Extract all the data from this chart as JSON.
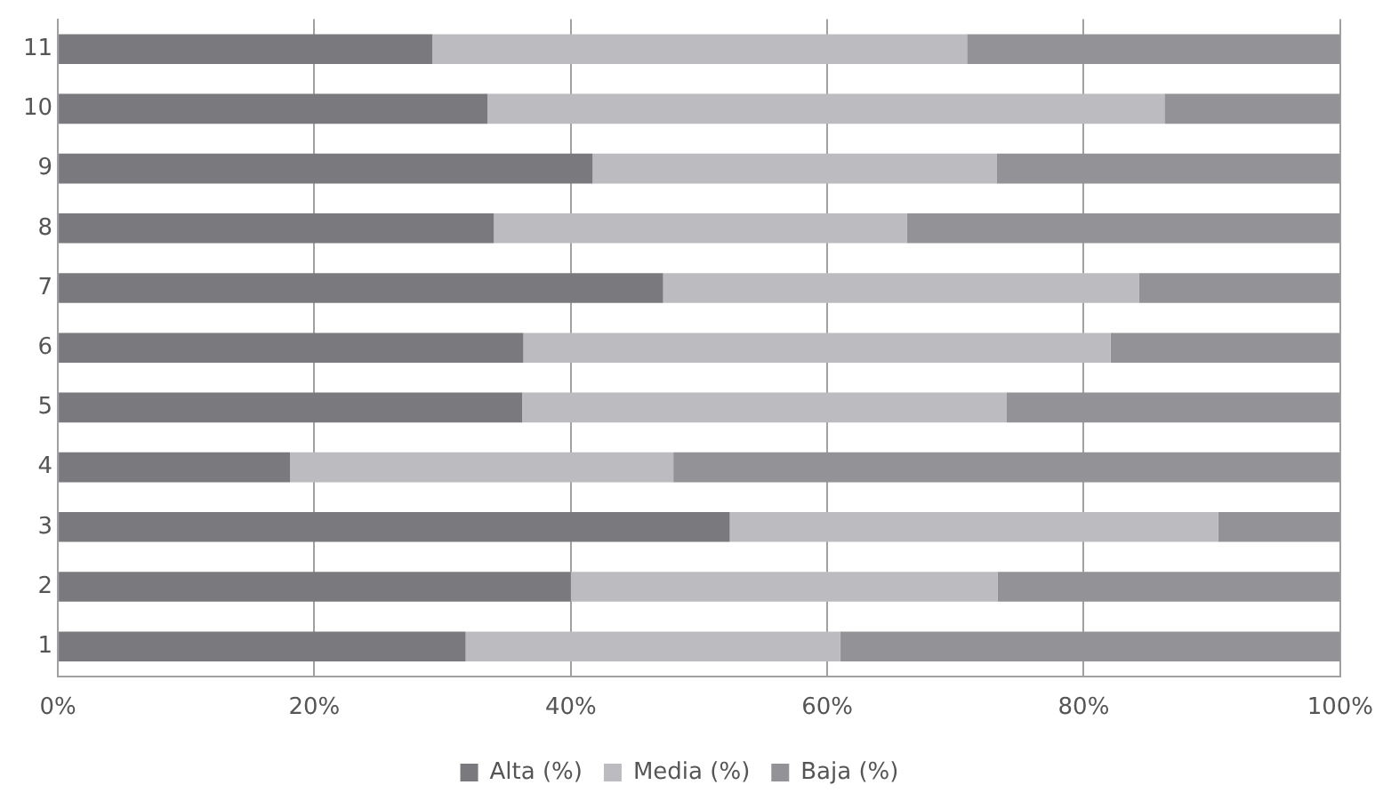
{
  "chart_data": {
    "type": "bar",
    "orientation": "horizontal",
    "stacked": true,
    "categories": [
      "11",
      "10",
      "9",
      "8",
      "7",
      "6",
      "5",
      "4",
      "3",
      "2",
      "1"
    ],
    "series": [
      {
        "name": "Alta (%)",
        "color": "#7a7a7e",
        "values": [
          29.2,
          33.5,
          41.7,
          34.0,
          47.2,
          36.3,
          36.2,
          18.1,
          52.4,
          40.0,
          31.8
        ]
      },
      {
        "name": "Media (%)",
        "color": "#bcbcc0",
        "values": [
          41.7,
          52.8,
          31.5,
          32.2,
          37.1,
          45.8,
          37.8,
          29.9,
          38.1,
          33.3,
          29.2
        ]
      },
      {
        "name": "Baja (%)",
        "color": "#939397",
        "values": [
          29.1,
          13.7,
          26.8,
          33.8,
          15.7,
          17.9,
          26.0,
          52.0,
          9.5,
          26.7,
          39.0
        ]
      }
    ],
    "xlim": [
      0,
      100
    ],
    "xticks": [
      {
        "value": 0,
        "label": "0%"
      },
      {
        "value": 20,
        "label": "20%"
      },
      {
        "value": 40,
        "label": "40%"
      },
      {
        "value": 60,
        "label": "60%"
      },
      {
        "value": 80,
        "label": "80%"
      },
      {
        "value": 100,
        "label": "100%"
      }
    ],
    "grid": "x",
    "legend": "bottom"
  }
}
